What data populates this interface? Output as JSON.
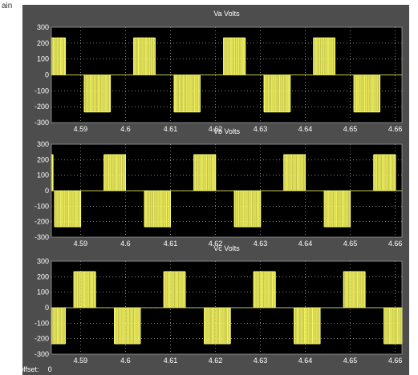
{
  "window": {
    "corner_text": "ain",
    "time_offset_label": "Time offset:",
    "time_offset_value": "0",
    "colors": {
      "panel": "#4d4d4d",
      "plot_bg": "#000000",
      "signal": "#ffff66",
      "grid": "#ffffff",
      "text": "#ffffff"
    }
  },
  "chart_data": [
    {
      "type": "line",
      "title": "Va  Volts",
      "xlabel": "",
      "ylabel": "",
      "xlim": [
        4.5835,
        4.6615
      ],
      "ylim": [
        -300,
        300
      ],
      "xticks": [
        "4.59",
        "4.6",
        "4.61",
        "4.62",
        "4.63",
        "4.64",
        "4.65",
        "4.66"
      ],
      "yticks": [
        "300",
        "200",
        "100",
        "0",
        "-100",
        "-200",
        "-300"
      ],
      "grid": true,
      "series": [
        {
          "fundamental_hz": 50,
          "pulse_amplitude": 233.33,
          "positive_half_cycles": [
            [
              4.5835,
              4.5866
            ],
            [
              4.6018,
              4.6066
            ],
            [
              4.6218,
              4.6266
            ],
            [
              4.6418,
              4.6466
            ]
          ],
          "negative_half_cycles": [
            [
              4.5908,
              4.5966
            ],
            [
              4.6108,
              4.6166
            ],
            [
              4.6308,
              4.6366
            ],
            [
              4.6508,
              4.6566
            ]
          ]
        }
      ]
    },
    {
      "type": "line",
      "title": "Vb  Volts",
      "xlabel": "",
      "ylabel": "",
      "xlim": [
        4.5835,
        4.6615
      ],
      "ylim": [
        -300,
        300
      ],
      "xticks": [
        "4.59",
        "4.6",
        "4.61",
        "4.62",
        "4.63",
        "4.64",
        "4.65",
        "4.66"
      ],
      "yticks": [
        "300",
        "200",
        "100",
        "0",
        "-100",
        "-200",
        "-300"
      ],
      "grid": true,
      "series": [
        {
          "fundamental_hz": 50,
          "pulse_amplitude": 233.33,
          "positive_half_cycles": [
            [
              4.5835,
              4.5838
            ],
            [
              4.5952,
              4.6
            ],
            [
              4.6152,
              4.62
            ],
            [
              4.6352,
              4.64
            ],
            [
              4.6552,
              4.66
            ]
          ],
          "negative_half_cycles": [
            [
              4.5842,
              4.59
            ],
            [
              4.6042,
              4.61
            ],
            [
              4.6242,
              4.63
            ],
            [
              4.6442,
              4.65
            ]
          ]
        }
      ]
    },
    {
      "type": "line",
      "title": "Vc  Volts",
      "xlabel": "",
      "ylabel": "",
      "xlim": [
        4.5835,
        4.6615
      ],
      "ylim": [
        -300,
        300
      ],
      "xticks": [
        "4.59",
        "4.6",
        "4.61",
        "4.62",
        "4.63",
        "4.64",
        "4.65",
        "4.66"
      ],
      "yticks": [
        "300",
        "200",
        "100",
        "0",
        "-100",
        "-200",
        "-300"
      ],
      "grid": true,
      "series": [
        {
          "fundamental_hz": 50,
          "pulse_amplitude": 233.33,
          "positive_half_cycles": [
            [
              4.5885,
              4.5933
            ],
            [
              4.6085,
              4.6133
            ],
            [
              4.6285,
              4.6333
            ],
            [
              4.6485,
              4.6533
            ]
          ],
          "negative_half_cycles": [
            [
              4.5835,
              4.5866
            ],
            [
              4.5975,
              4.6033
            ],
            [
              4.6175,
              4.6233
            ],
            [
              4.6375,
              4.6433
            ],
            [
              4.6575,
              4.6615
            ]
          ]
        }
      ]
    }
  ]
}
